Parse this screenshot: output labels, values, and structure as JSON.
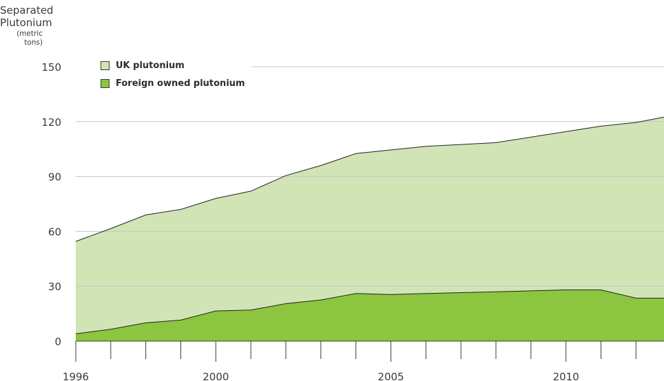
{
  "chart_data": {
    "type": "area",
    "stacked": true,
    "ylabel": [
      "Separated",
      "Plutonium",
      "(metric tons)"
    ],
    "ylim": [
      0,
      150
    ],
    "xlim": [
      1996,
      2012.8
    ],
    "yticks": [
      0,
      30,
      60,
      90,
      120,
      150
    ],
    "xtick_labels": [
      1996,
      2000,
      2005,
      2010
    ],
    "grid": true,
    "legend_position": "top-left",
    "x": [
      1996,
      1997,
      1998,
      1999,
      2000,
      2001,
      2002,
      2003,
      2004,
      2005,
      2006,
      2007,
      2008,
      2009,
      2010,
      2011,
      2012,
      2012.8
    ],
    "total": [
      54.5,
      61.5,
      69,
      72,
      78,
      82,
      90.5,
      96,
      102.5,
      104.5,
      106.5,
      107.5,
      108.5,
      111.5,
      114.5,
      117.5,
      119.5,
      122.5
    ],
    "series": [
      {
        "name": "UK plutonium",
        "color": "#d1e4b5",
        "values": [
          50.5,
          55,
          59,
          60.5,
          61.5,
          65,
          70,
          73.5,
          76.5,
          79,
          80.5,
          81,
          81.5,
          84,
          86.5,
          89.5,
          96,
          99
        ]
      },
      {
        "name": "Foreign owned plutonium",
        "color": "#8cc540",
        "values": [
          4,
          6.5,
          10,
          11.5,
          16.5,
          17,
          20.5,
          22.5,
          26,
          25.5,
          26,
          26.5,
          27,
          27.5,
          28,
          28,
          23.5,
          23.5
        ]
      }
    ]
  }
}
